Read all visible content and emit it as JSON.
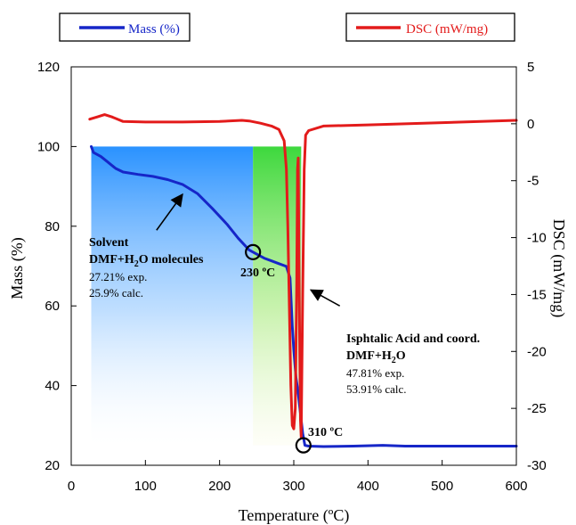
{
  "legend": [
    {
      "label": "Mass (%)",
      "color": "#1626c8"
    },
    {
      "label": "DSC (mW/mg)",
      "color": "#e31b1b"
    }
  ],
  "chart_data": {
    "type": "line",
    "x": {
      "label": "Temperature (ºC)",
      "range": [
        0,
        600
      ],
      "ticks": [
        0,
        100,
        200,
        300,
        400,
        500,
        600
      ]
    },
    "y_left": {
      "label": "Mass (%)",
      "range": [
        20,
        120
      ],
      "ticks": [
        20,
        40,
        60,
        80,
        100,
        120
      ]
    },
    "y_right": {
      "label": "DSC (mW/mg)",
      "range": [
        -30,
        5
      ],
      "ticks": [
        5,
        0,
        -5,
        -10,
        -15,
        -20,
        -25,
        -30
      ]
    },
    "grid": false,
    "series": [
      {
        "name": "Mass (%)",
        "axis": "left",
        "color": "#1626c8",
        "points": [
          [
            27,
            100
          ],
          [
            30,
            98.5
          ],
          [
            40,
            97.5
          ],
          [
            50,
            96
          ],
          [
            60,
            94.5
          ],
          [
            70,
            93.6
          ],
          [
            90,
            93
          ],
          [
            110,
            92.5
          ],
          [
            130,
            91.7
          ],
          [
            150,
            90.5
          ],
          [
            170,
            88.2
          ],
          [
            190,
            84.5
          ],
          [
            210,
            80.5
          ],
          [
            225,
            77
          ],
          [
            240,
            74
          ],
          [
            250,
            73
          ],
          [
            260,
            72
          ],
          [
            270,
            71.3
          ],
          [
            280,
            70.6
          ],
          [
            290,
            69.9
          ],
          [
            295,
            67
          ],
          [
            298,
            55
          ],
          [
            300,
            49
          ],
          [
            303,
            42
          ],
          [
            306,
            38
          ],
          [
            309,
            33
          ],
          [
            312,
            28
          ],
          [
            315,
            25
          ],
          [
            320,
            24.8
          ],
          [
            340,
            24.7
          ],
          [
            380,
            24.8
          ],
          [
            420,
            25
          ],
          [
            450,
            24.8
          ],
          [
            500,
            24.8
          ],
          [
            550,
            24.8
          ],
          [
            600,
            24.8
          ]
        ]
      },
      {
        "name": "DSC (mW/mg)",
        "axis": "right",
        "color": "#e31b1b",
        "points": [
          [
            25,
            0.4
          ],
          [
            35,
            0.6
          ],
          [
            45,
            0.8
          ],
          [
            55,
            0.6
          ],
          [
            70,
            0.2
          ],
          [
            100,
            0.15
          ],
          [
            150,
            0.15
          ],
          [
            200,
            0.2
          ],
          [
            230,
            0.3
          ],
          [
            240,
            0.25
          ],
          [
            255,
            0.05
          ],
          [
            270,
            -0.2
          ],
          [
            280,
            -0.5
          ],
          [
            287,
            -1.5
          ],
          [
            290,
            -4
          ],
          [
            292,
            -9
          ],
          [
            294,
            -16
          ],
          [
            296,
            -23
          ],
          [
            298,
            -26.5
          ],
          [
            300,
            -26.8
          ],
          [
            302,
            -25
          ],
          [
            304,
            -14
          ],
          [
            305,
            -4
          ],
          [
            306,
            -3
          ],
          [
            307,
            -12
          ],
          [
            308,
            -20
          ],
          [
            309,
            -26
          ],
          [
            310,
            -27.5
          ],
          [
            312,
            -15
          ],
          [
            314,
            -4
          ],
          [
            316,
            -1
          ],
          [
            320,
            -0.6
          ],
          [
            340,
            -0.2
          ],
          [
            400,
            -0.1
          ],
          [
            500,
            0.1
          ],
          [
            600,
            0.3
          ]
        ]
      }
    ],
    "shaded_regions": [
      {
        "x_range": [
          27,
          245
        ],
        "y_range": [
          25,
          100
        ],
        "color": "#1e8cff"
      },
      {
        "x_range": [
          245,
          310
        ],
        "y_range": [
          25,
          100
        ],
        "color": "#3ad93a"
      }
    ],
    "markers": [
      {
        "x": 245,
        "y": 73.5,
        "label": "230 ºC"
      },
      {
        "x": 313,
        "y": 25,
        "label": "310 ºC"
      }
    ],
    "annotations": [
      {
        "title1": "Solvent",
        "title2_pre": "DMF+H",
        "title2_sub": "2",
        "title2_post": "O  molecules",
        "lines": [
          "27.21% exp.",
          "25.9% calc."
        ],
        "arrow_from": [
          115,
          79
        ],
        "arrow_to": [
          150,
          88
        ]
      },
      {
        "title1": "Isphtalic Acid and coord.",
        "title2_pre": "DMF+H",
        "title2_sub": "2",
        "title2_post": "O",
        "lines": [
          "47.81% exp.",
          "53.91% calc."
        ],
        "arrow_from": [
          362,
          60
        ],
        "arrow_to": [
          323,
          64
        ]
      }
    ]
  }
}
